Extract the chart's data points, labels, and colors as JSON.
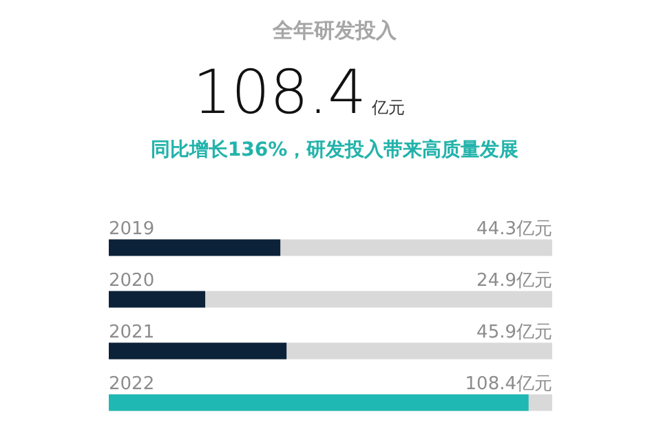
{
  "chart_data": {
    "type": "bar",
    "orientation": "horizontal",
    "title": "全年研发投入",
    "subtitle": "同比增长136%，研发投入带来高质量发展",
    "annotations": [
      "108.4",
      "亿元"
    ],
    "categories": [
      "2019",
      "2020",
      "2021",
      "2022"
    ],
    "values": [
      44.3,
      24.9,
      45.9,
      108.4
    ],
    "colors": [
      "#0c2238",
      "#0c2238",
      "#0c2238",
      "#1fb8b2"
    ],
    "value_labels": [
      "44.3亿元",
      "24.9亿元",
      "45.9亿元",
      "108.4亿元"
    ],
    "xlim": [
      0,
      114.5
    ],
    "tick_labels": "y"
  }
}
